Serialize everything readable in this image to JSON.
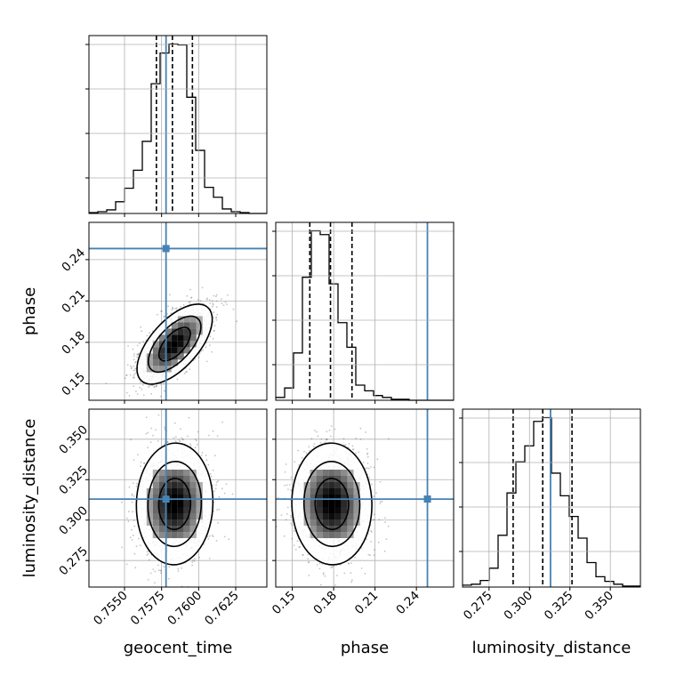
{
  "chart_data": {
    "type": "corner",
    "parameters": [
      "geocent_time",
      "phase",
      "luminosity_distance"
    ],
    "truth_color": "#4682b4",
    "hist_color": "#000000",
    "grid": true,
    "truths": {
      "geocent_time": 0.7578,
      "phase": 0.248,
      "luminosity_distance": 0.313
    },
    "ranges": {
      "geocent_time": [
        0.7526,
        0.7646
      ],
      "phase": [
        0.138,
        0.267
      ],
      "luminosity_distance": [
        0.2586,
        0.3686
      ]
    },
    "ticks": {
      "geocent_time": {
        "values": [
          0.755,
          0.7575,
          0.76,
          0.7625
        ],
        "labels": [
          "0.7550",
          "0.7575",
          "0.7600",
          "0.7625"
        ]
      },
      "phase": {
        "values": [
          0.15,
          0.18,
          0.21,
          0.24
        ],
        "labels": [
          "0.15",
          "0.18",
          "0.21",
          "0.24"
        ]
      },
      "luminosity_distance": {
        "values": [
          0.275,
          0.3,
          0.325,
          0.35
        ],
        "labels": [
          "0.275",
          "0.300",
          "0.325",
          "0.350"
        ]
      }
    },
    "marginals": {
      "geocent_time": {
        "bin_edges": [
          0.7526,
          0.7532,
          0.7538,
          0.7544,
          0.755,
          0.7556,
          0.7562,
          0.7568,
          0.7574,
          0.758,
          0.7586,
          0.7592,
          0.7598,
          0.7604,
          0.761,
          0.7616,
          0.7622,
          0.7628,
          0.7634,
          0.764,
          0.7646
        ],
        "counts": [
          1,
          2,
          4,
          13,
          28,
          48,
          80,
          144,
          178,
          188,
          187,
          129,
          70,
          29,
          18,
          5,
          2,
          1,
          0,
          0
        ],
        "quantiles": [
          0.75715,
          0.75823,
          0.75958
        ]
      },
      "phase": {
        "bin_edges": [
          0.138,
          0.14445,
          0.1509,
          0.15735,
          0.1638,
          0.17025,
          0.1767,
          0.18315,
          0.1896,
          0.19605,
          0.2025,
          0.20895,
          0.2154,
          0.22185,
          0.2283,
          0.23475,
          0.2412,
          0.24765,
          0.2541,
          0.26055,
          0.267
        ],
        "counts": [
          3,
          13,
          50,
          130,
          179,
          175,
          123,
          82,
          56,
          16,
          10,
          5,
          3,
          1,
          1,
          0,
          0,
          0,
          0,
          0
        ],
        "quantiles": [
          0.1627,
          0.1777,
          0.1933
        ]
      },
      "luminosity_distance": {
        "bin_edges": [
          0.2586,
          0.2641,
          0.2696,
          0.2751,
          0.2806,
          0.2861,
          0.2916,
          0.2971,
          0.3026,
          0.3081,
          0.3136,
          0.3191,
          0.3246,
          0.3301,
          0.3356,
          0.3411,
          0.3466,
          0.3521,
          0.3576,
          0.3631,
          0.3686
        ],
        "counts": [
          2,
          3,
          7,
          20,
          55,
          100,
          133,
          150,
          176,
          180,
          121,
          97,
          75,
          52,
          26,
          11,
          6,
          3,
          1,
          1
        ],
        "quantiles": [
          0.2899,
          0.3082,
          0.3263
        ]
      }
    },
    "pairs": [
      {
        "x": "geocent_time",
        "y": "phase",
        "mean": [
          0.75838,
          0.1787
        ],
        "sd": [
          0.00118,
          0.0135
        ],
        "corr": 0.62
      },
      {
        "x": "geocent_time",
        "y": "luminosity_distance",
        "mean": [
          0.75838,
          0.31
        ],
        "sd": [
          0.0012,
          0.0175
        ],
        "corr": 0.03
      },
      {
        "x": "phase",
        "y": "luminosity_distance",
        "mean": [
          0.1787,
          0.31
        ],
        "sd": [
          0.0135,
          0.0175
        ],
        "corr": -0.02
      }
    ]
  }
}
